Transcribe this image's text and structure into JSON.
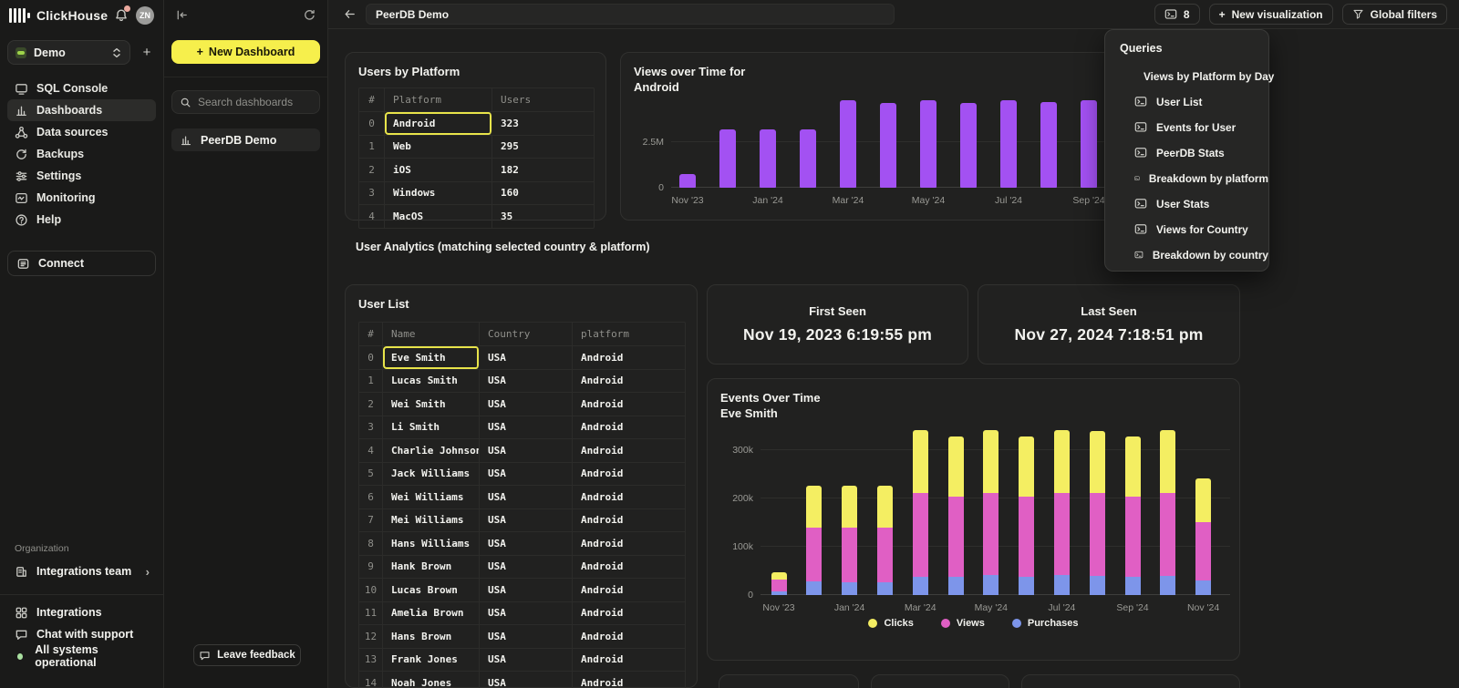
{
  "brand": {
    "name": "ClickHouse",
    "avatar_initials": "ZN"
  },
  "sidebar": {
    "workspace_label": "Demo",
    "nav": [
      {
        "label": "SQL Console",
        "icon": "console-icon",
        "active": false
      },
      {
        "label": "Dashboards",
        "icon": "dashboards-icon",
        "active": true
      },
      {
        "label": "Data sources",
        "icon": "data-sources-icon",
        "active": false
      },
      {
        "label": "Backups",
        "icon": "backups-icon",
        "active": false
      },
      {
        "label": "Settings",
        "icon": "settings-icon",
        "active": false
      },
      {
        "label": "Monitoring",
        "icon": "monitoring-icon",
        "active": false
      },
      {
        "label": "Help",
        "icon": "help-icon",
        "active": false
      }
    ],
    "connect_label": "Connect",
    "organization_label": "Organization",
    "team_label": "Integrations team",
    "footer": [
      {
        "label": "Integrations",
        "icon": "integrations-icon"
      },
      {
        "label": "Chat with support",
        "icon": "chat-icon"
      },
      {
        "label": "All systems operational",
        "icon": "status-dot"
      }
    ]
  },
  "dashboards_panel": {
    "new_dashboard_label": "New Dashboard",
    "search_placeholder": "Search dashboards",
    "items": [
      {
        "label": "PeerDB Demo",
        "selected": true
      }
    ],
    "leave_feedback_label": "Leave feedback"
  },
  "topbar": {
    "title_value": "PeerDB Demo",
    "queries_count": "8",
    "new_visualization_label": "New visualization",
    "global_filters_label": "Global filters"
  },
  "queries_menu": {
    "title": "Queries",
    "items": [
      "Views by Platform by Day",
      "User List",
      "Events for User",
      "PeerDB Stats",
      "Breakdown by platform",
      "User Stats",
      "Views for Country",
      "Breakdown by country"
    ]
  },
  "users_by_platform": {
    "title": "Users by Platform",
    "columns": [
      "#",
      "Platform",
      "Users"
    ],
    "rows": [
      [
        "0",
        "Android",
        "323"
      ],
      [
        "1",
        "Web",
        "295"
      ],
      [
        "2",
        "iOS",
        "182"
      ],
      [
        "3",
        "Windows",
        "160"
      ],
      [
        "4",
        "MacOS",
        "35"
      ]
    ],
    "selected": {
      "row": 0,
      "col": 1
    }
  },
  "analytics_heading": "User Analytics (matching selected country & platform)",
  "user_list": {
    "title": "User List",
    "columns": [
      "#",
      "Name",
      "Country",
      "platform"
    ],
    "rows": [
      [
        "0",
        "Eve Smith",
        "USA",
        "Android"
      ],
      [
        "1",
        "Lucas Smith",
        "USA",
        "Android"
      ],
      [
        "2",
        "Wei Smith",
        "USA",
        "Android"
      ],
      [
        "3",
        "Li Smith",
        "USA",
        "Android"
      ],
      [
        "4",
        "Charlie Johnson",
        "USA",
        "Android"
      ],
      [
        "5",
        "Jack Williams",
        "USA",
        "Android"
      ],
      [
        "6",
        "Wei Williams",
        "USA",
        "Android"
      ],
      [
        "7",
        "Mei Williams",
        "USA",
        "Android"
      ],
      [
        "8",
        "Hans Williams",
        "USA",
        "Android"
      ],
      [
        "9",
        "Hank Brown",
        "USA",
        "Android"
      ],
      [
        "10",
        "Lucas Brown",
        "USA",
        "Android"
      ],
      [
        "11",
        "Amelia Brown",
        "USA",
        "Android"
      ],
      [
        "12",
        "Hans Brown",
        "USA",
        "Android"
      ],
      [
        "13",
        "Frank Jones",
        "USA",
        "Android"
      ],
      [
        "14",
        "Noah Jones",
        "USA",
        "Android"
      ]
    ],
    "selected": {
      "row": 0,
      "col": 1
    }
  },
  "first_seen": {
    "label": "First Seen",
    "value": "Nov 19, 2023 6:19:55 pm"
  },
  "last_seen": {
    "label": "Last Seen",
    "value": "Nov 27, 2024 7:18:51 pm"
  },
  "colors": {
    "accent_yellow": "#f6ef4c",
    "selection_yellow": "#e8e44a",
    "purple_bar": "#a351f2",
    "clicks_yellow": "#f4ee62",
    "views_pink": "#e05fc4",
    "purchases_blue": "#7d95ea",
    "status_green": "#a9dfa0",
    "notification_dot": "#eba99e"
  },
  "chart_data": [
    {
      "id": "views_over_time",
      "type": "bar",
      "title": "Views over Time for",
      "subtitle": "Android",
      "x": [
        "Nov '23",
        "Dec '23",
        "Jan '24",
        "Feb '24",
        "Mar '24",
        "Apr '24",
        "May '24",
        "Jun '24",
        "Jul '24",
        "Aug '24",
        "Sep '24"
      ],
      "values": [
        750000,
        3200000,
        3200000,
        3200000,
        4800000,
        4650000,
        4800000,
        4650000,
        4800000,
        4700000,
        4800000
      ],
      "bar_color": "#a351f2",
      "ylim": [
        0,
        5000000
      ],
      "yticks": [
        {
          "v": 0,
          "label": "0"
        },
        {
          "v": 2500000,
          "label": "2.5M"
        }
      ],
      "xtick_every": 2,
      "grid": true,
      "legend": null
    },
    {
      "id": "events_over_time",
      "type": "stacked-bar",
      "title": "Events Over Time",
      "subtitle": "Eve Smith",
      "x": [
        "Nov '23",
        "Dec '23",
        "Jan '24",
        "Feb '24",
        "Mar '24",
        "Apr '24",
        "May '24",
        "Jun '24",
        "Jul '24",
        "Aug '24",
        "Sep '24",
        "Oct '24",
        "Nov '24"
      ],
      "series": [
        {
          "name": "Purchases",
          "color": "#7d95ea",
          "values": [
            8000,
            28000,
            26000,
            27000,
            38000,
            38000,
            42000,
            38000,
            42000,
            40000,
            38000,
            40000,
            30000
          ]
        },
        {
          "name": "Views",
          "color": "#e05fc4",
          "values": [
            24000,
            112000,
            114000,
            112000,
            172000,
            166000,
            168000,
            166000,
            168000,
            170000,
            166000,
            170000,
            120000
          ]
        },
        {
          "name": "Clicks",
          "color": "#f4ee62",
          "values": [
            16000,
            85000,
            85000,
            86000,
            130000,
            124000,
            130000,
            124000,
            130000,
            128000,
            124000,
            130000,
            90000
          ]
        }
      ],
      "ylim": [
        0,
        350000
      ],
      "yticks": [
        {
          "v": 0,
          "label": "0"
        },
        {
          "v": 100000,
          "label": "100k"
        },
        {
          "v": 200000,
          "label": "200k"
        },
        {
          "v": 300000,
          "label": "300k"
        }
      ],
      "legend": [
        "Clicks",
        "Views",
        "Purchases"
      ],
      "legend_position": "bottom",
      "xtick_every": 2,
      "grid": true
    }
  ]
}
